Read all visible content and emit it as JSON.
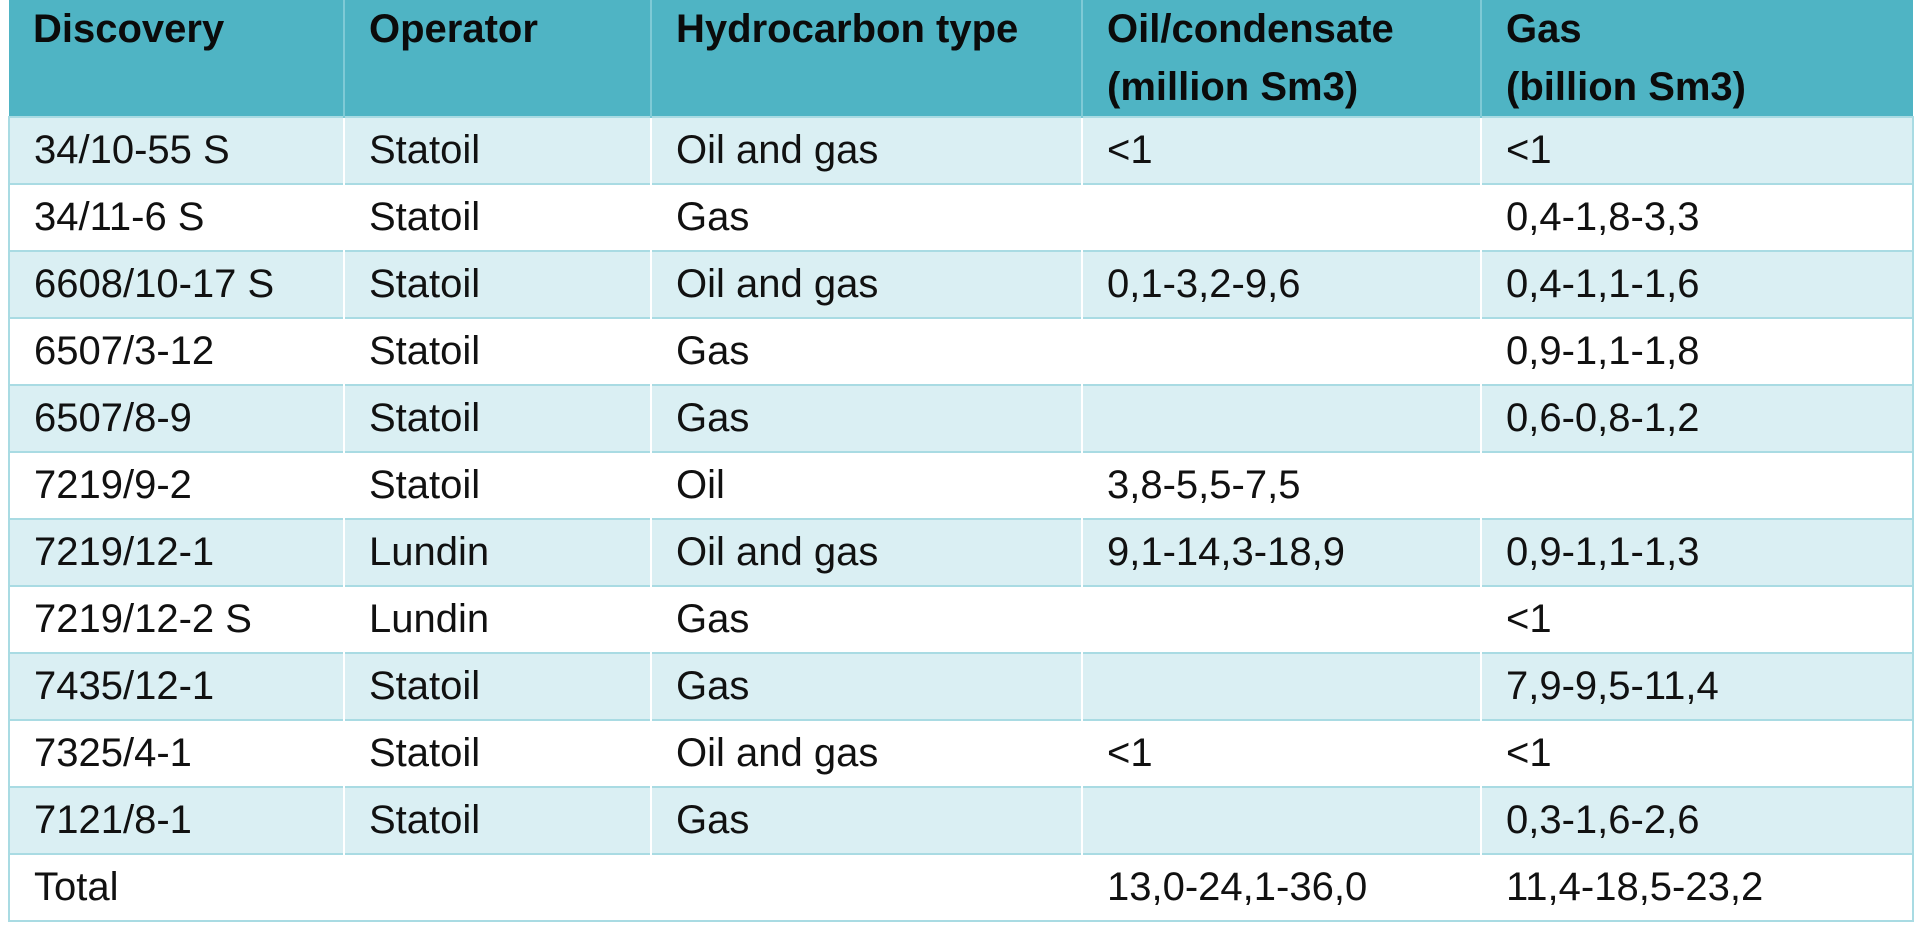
{
  "table": {
    "columns": [
      "Discovery",
      "Operator",
      "Hydrocarbon type",
      "Oil/condensate\n(million Sm3)",
      "Gas\n(billion Sm3)"
    ],
    "rows": [
      {
        "discovery": "34/10-55 S",
        "operator": "Statoil",
        "type": "Oil and gas",
        "oil": "<1",
        "gas": "<1"
      },
      {
        "discovery": "34/11-6 S",
        "operator": "Statoil",
        "type": "Gas",
        "oil": "",
        "gas": "0,4-1,8-3,3"
      },
      {
        "discovery": "6608/10-17 S",
        "operator": "Statoil",
        "type": "Oil and gas",
        "oil": "0,1-3,2-9,6",
        "gas": "0,4-1,1-1,6"
      },
      {
        "discovery": "6507/3-12",
        "operator": "Statoil",
        "type": "Gas",
        "oil": "",
        "gas": "0,9-1,1-1,8"
      },
      {
        "discovery": "6507/8-9",
        "operator": "Statoil",
        "type": "Gas",
        "oil": "",
        "gas": "0,6-0,8-1,2"
      },
      {
        "discovery": "7219/9-2",
        "operator": "Statoil",
        "type": "Oil",
        "oil": "3,8-5,5-7,5",
        "gas": ""
      },
      {
        "discovery": "7219/12-1",
        "operator": "Lundin",
        "type": "Oil and gas",
        "oil": "9,1-14,3-18,9",
        "gas": "0,9-1,1-1,3"
      },
      {
        "discovery": "7219/12-2 S",
        "operator": "Lundin",
        "type": "Gas",
        "oil": "",
        "gas": "<1"
      },
      {
        "discovery": "7435/12-1",
        "operator": "Statoil",
        "type": "Gas",
        "oil": "",
        "gas": "7,9-9,5-11,4"
      },
      {
        "discovery": "7325/4-1",
        "operator": "Statoil",
        "type": "Oil and gas",
        "oil": "<1",
        "gas": "<1"
      },
      {
        "discovery": "7121/8-1",
        "operator": "Statoil",
        "type": "Gas",
        "oil": "",
        "gas": "0,3-1,6-2,6"
      },
      {
        "discovery": "Total",
        "operator": "",
        "type": "",
        "oil": "13,0-24,1-36,0",
        "gas": "11,4-18,5-23,2"
      }
    ]
  },
  "colors": {
    "header_bg": "#4fb4c4",
    "band_bg": "#daeff3",
    "row_bg": "#ffffff",
    "grid_line": "#a9dbe3"
  }
}
